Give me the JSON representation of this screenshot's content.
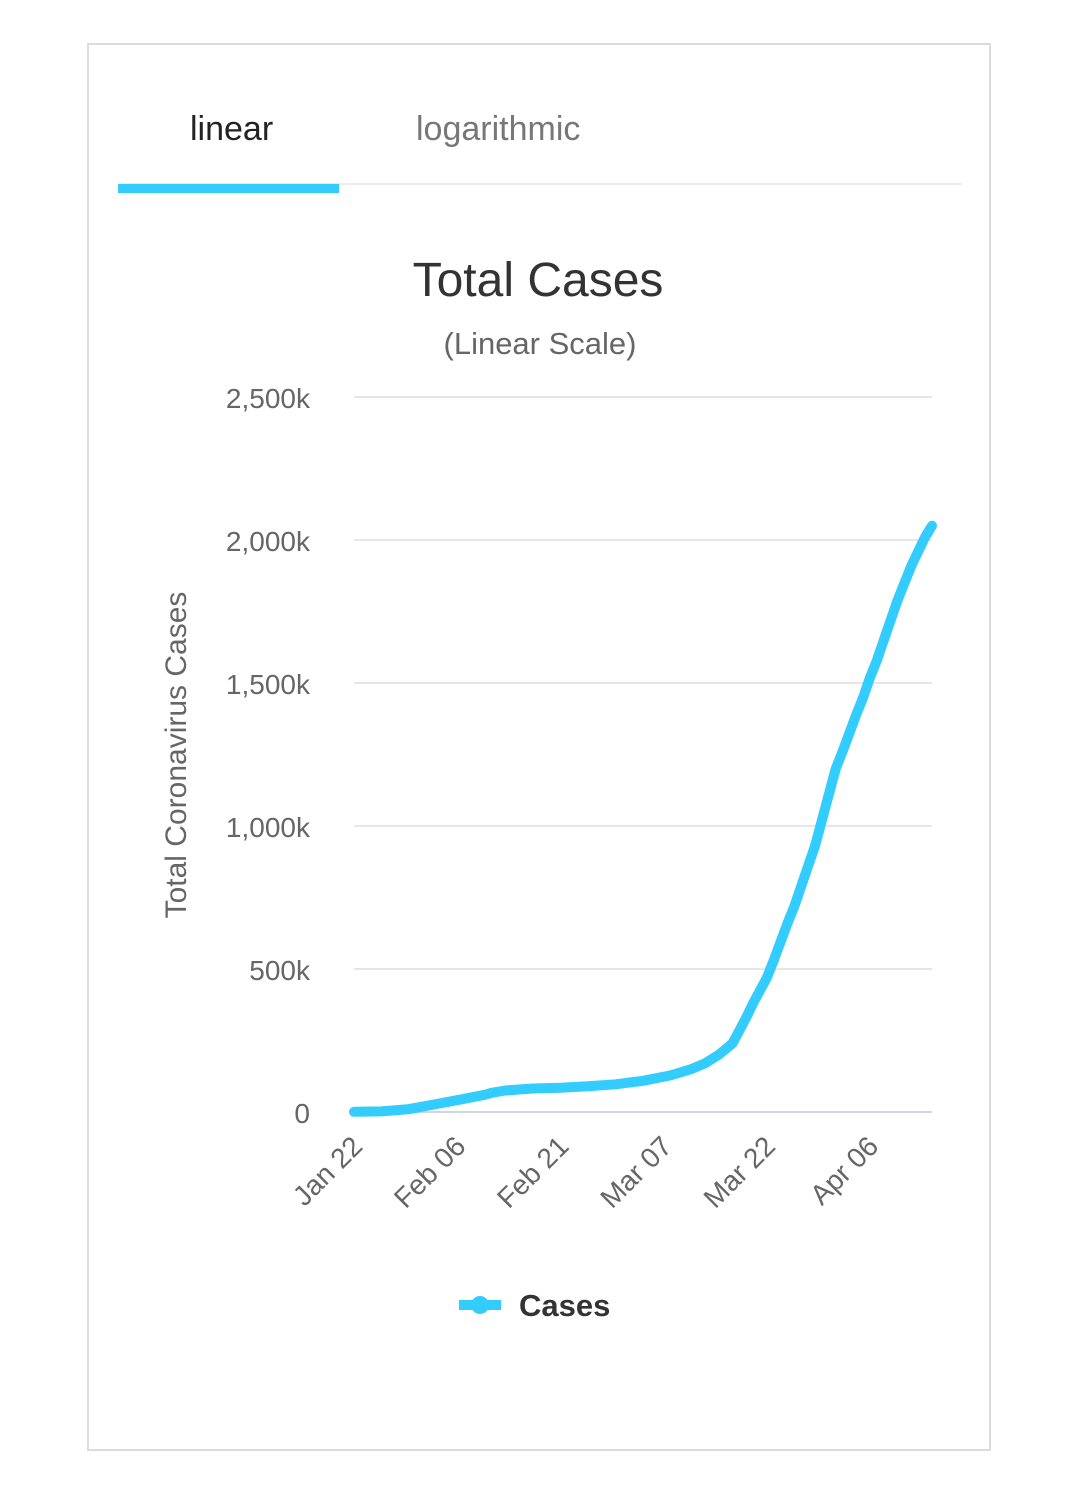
{
  "tabs": {
    "items": [
      {
        "label": "linear",
        "active": true
      },
      {
        "label": "logarithmic",
        "active": false
      }
    ]
  },
  "colors": {
    "accent": "#33ccff",
    "grid": "#e6e6e6",
    "baseline": "#ccd6eb",
    "text": "#333333",
    "muted": "#666666"
  },
  "chart_data": {
    "type": "line",
    "title": "Total Cases",
    "subtitle": "(Linear Scale)",
    "ylabel": "Total Coronavirus Cases",
    "xlabel": "",
    "ylim": [
      0,
      2500000
    ],
    "yticks": [
      0,
      500000,
      1000000,
      1500000,
      2000000,
      2500000
    ],
    "ytick_labels": [
      "0",
      "500k",
      "1,000k",
      "1,500k",
      "2,000k",
      "2,500k"
    ],
    "xtick_labels": [
      "Jan 22",
      "Feb 06",
      "Feb 21",
      "Mar 07",
      "Mar 22",
      "Apr 06"
    ],
    "xtick_day_index": [
      0,
      15,
      30,
      45,
      60,
      75
    ],
    "x_range_days": [
      0,
      84
    ],
    "legend": {
      "label": "Cases",
      "position": "bottom-center"
    },
    "series": [
      {
        "name": "Cases",
        "x_day_index": [
          0,
          4,
          8,
          12,
          16,
          19,
          20,
          22,
          26,
          30,
          34,
          38,
          42,
          46,
          49,
          51,
          53,
          55,
          57,
          58,
          60,
          61,
          63,
          64,
          66,
          67,
          68,
          70,
          71,
          73,
          74,
          75,
          76,
          77,
          78,
          79,
          80,
          81,
          82,
          83,
          84
        ],
        "values": [
          600,
          2000,
          10000,
          28000,
          46000,
          60000,
          67000,
          75000,
          82000,
          85000,
          90000,
          97000,
          109000,
          128000,
          150000,
          170000,
          200000,
          240000,
          330000,
          380000,
          470000,
          530000,
          660000,
          720000,
          860000,
          930000,
          1020000,
          1200000,
          1260000,
          1390000,
          1450000,
          1520000,
          1580000,
          1650000,
          1720000,
          1790000,
          1850000,
          1910000,
          1960000,
          2010000,
          2050000
        ]
      }
    ]
  }
}
